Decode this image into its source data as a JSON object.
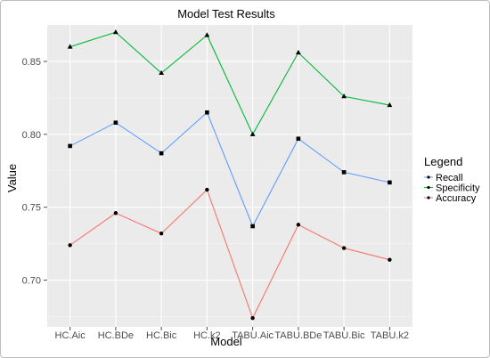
{
  "chart_data": {
    "type": "line",
    "title": "Model Test Results",
    "xlabel": "Model",
    "ylabel": "Value",
    "categories": [
      "HC.Aic",
      "HC.BDe",
      "HC.Bic",
      "HC.k2",
      "TABU.Aic",
      "TABU.BDe",
      "TABU.Bic",
      "TABU.k2"
    ],
    "ylim": [
      0.668,
      0.875
    ],
    "yticks": [
      0.7,
      0.75,
      0.8,
      0.85
    ],
    "ytick_labels": [
      "0.70",
      "0.75",
      "0.80",
      "0.85"
    ],
    "grid": true,
    "legend": {
      "title": "Legend",
      "position": "right"
    },
    "series": [
      {
        "name": "Recall",
        "color": "#619CFF",
        "marker": "square",
        "values": [
          0.792,
          0.808,
          0.787,
          0.815,
          0.737,
          0.797,
          0.774,
          0.767
        ]
      },
      {
        "name": "Specificity",
        "color": "#00BA38",
        "marker": "triangle",
        "values": [
          0.86,
          0.87,
          0.842,
          0.868,
          0.8,
          0.856,
          0.826,
          0.82
        ]
      },
      {
        "name": "Accuracy",
        "color": "#F8766D",
        "marker": "circle",
        "values": [
          0.724,
          0.746,
          0.732,
          0.762,
          0.674,
          0.738,
          0.722,
          0.714
        ]
      }
    ],
    "legend_order": [
      "Recall",
      "Specificity",
      "Accuracy"
    ]
  }
}
